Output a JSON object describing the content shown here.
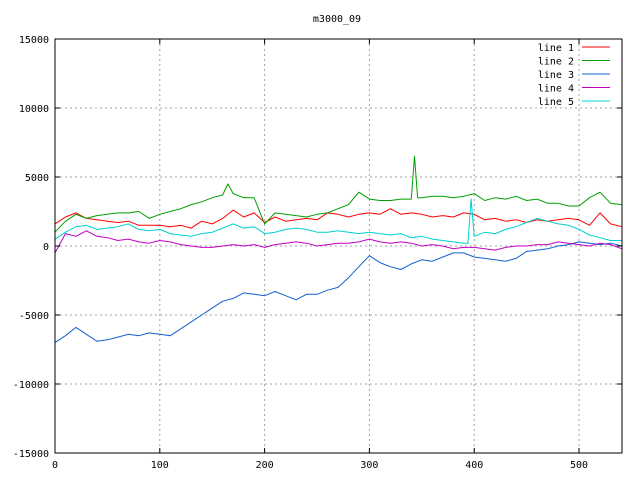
{
  "chart_data": {
    "type": "line",
    "title": "m3000_09",
    "xlabel": "",
    "ylabel": "",
    "xlim": [
      0,
      541
    ],
    "ylim": [
      -15000,
      15000
    ],
    "x_ticks": [
      0,
      100,
      200,
      300,
      400,
      500
    ],
    "y_ticks": [
      -15000,
      -10000,
      -5000,
      0,
      5000,
      10000,
      15000
    ],
    "grid": true,
    "legend_position": "top-right",
    "series": [
      {
        "name": "line 1",
        "color": "#ff0000",
        "x": [
          0,
          10,
          20,
          30,
          40,
          50,
          60,
          70,
          80,
          90,
          100,
          110,
          120,
          130,
          140,
          150,
          160,
          170,
          180,
          190,
          200,
          210,
          220,
          230,
          240,
          250,
          260,
          270,
          280,
          290,
          300,
          310,
          320,
          330,
          340,
          350,
          360,
          370,
          380,
          390,
          400,
          410,
          420,
          430,
          440,
          450,
          460,
          470,
          480,
          490,
          500,
          510,
          520,
          530,
          541
        ],
        "y": [
          1600,
          2100,
          2400,
          2000,
          1900,
          1800,
          1700,
          1800,
          1500,
          1500,
          1500,
          1400,
          1500,
          1300,
          1800,
          1600,
          2000,
          2600,
          2100,
          2400,
          1700,
          2100,
          1800,
          1900,
          2000,
          1900,
          2400,
          2300,
          2100,
          2300,
          2400,
          2300,
          2700,
          2300,
          2400,
          2300,
          2100,
          2200,
          2100,
          2400,
          2300,
          1900,
          2000,
          1800,
          1900,
          1700,
          1900,
          1800,
          1900,
          2000,
          1900,
          1500,
          2400,
          1600,
          1400
        ]
      },
      {
        "name": "line 2",
        "color": "#00a000",
        "x": [
          0,
          10,
          20,
          30,
          40,
          50,
          60,
          70,
          80,
          90,
          100,
          110,
          120,
          130,
          140,
          150,
          160,
          165,
          170,
          180,
          190,
          200,
          210,
          220,
          230,
          240,
          250,
          260,
          270,
          280,
          290,
          300,
          310,
          320,
          330,
          340,
          343,
          346,
          350,
          360,
          370,
          380,
          390,
          400,
          410,
          420,
          430,
          440,
          450,
          460,
          470,
          480,
          490,
          500,
          510,
          520,
          530,
          541
        ],
        "y": [
          1000,
          1800,
          2300,
          2000,
          2200,
          2300,
          2400,
          2400,
          2500,
          2000,
          2300,
          2500,
          2700,
          3000,
          3200,
          3500,
          3700,
          4500,
          3800,
          3500,
          3500,
          1600,
          2400,
          2300,
          2200,
          2100,
          2300,
          2400,
          2700,
          3000,
          3900,
          3400,
          3300,
          3300,
          3400,
          3400,
          6500,
          3500,
          3500,
          3600,
          3600,
          3500,
          3600,
          3800,
          3300,
          3500,
          3400,
          3600,
          3300,
          3400,
          3100,
          3100,
          2900,
          2900,
          3500,
          3900,
          3100,
          3000
        ]
      },
      {
        "name": "line 3",
        "color": "#1060d0",
        "x": [
          0,
          10,
          20,
          30,
          40,
          50,
          60,
          70,
          80,
          90,
          100,
          110,
          120,
          130,
          140,
          150,
          160,
          170,
          180,
          190,
          200,
          210,
          220,
          230,
          240,
          250,
          260,
          270,
          280,
          290,
          300,
          310,
          320,
          330,
          340,
          350,
          360,
          370,
          380,
          390,
          400,
          410,
          420,
          430,
          440,
          450,
          460,
          470,
          480,
          490,
          500,
          510,
          520,
          530,
          541
        ],
        "y": [
          -7000,
          -6500,
          -5900,
          -6400,
          -6900,
          -6800,
          -6600,
          -6400,
          -6500,
          -6300,
          -6400,
          -6500,
          -6000,
          -5500,
          -5000,
          -4500,
          -4000,
          -3800,
          -3400,
          -3500,
          -3600,
          -3300,
          -3600,
          -3900,
          -3500,
          -3500,
          -3200,
          -3000,
          -2300,
          -1500,
          -700,
          -1200,
          -1500,
          -1700,
          -1300,
          -1000,
          -1100,
          -800,
          -500,
          -500,
          -800,
          -900,
          -1000,
          -1100,
          -900,
          -400,
          -300,
          -200,
          0,
          100,
          300,
          200,
          100,
          200,
          0
        ]
      },
      {
        "name": "line 4",
        "color": "#c000c0",
        "x": [
          0,
          10,
          20,
          30,
          40,
          50,
          60,
          70,
          80,
          90,
          100,
          110,
          120,
          130,
          140,
          150,
          160,
          170,
          180,
          190,
          200,
          210,
          220,
          230,
          240,
          250,
          260,
          270,
          280,
          290,
          300,
          310,
          320,
          330,
          340,
          350,
          360,
          370,
          380,
          390,
          400,
          410,
          420,
          430,
          440,
          450,
          460,
          470,
          480,
          490,
          500,
          510,
          520,
          530,
          541
        ],
        "y": [
          -500,
          900,
          700,
          1100,
          700,
          600,
          400,
          500,
          300,
          200,
          400,
          300,
          100,
          0,
          -100,
          -100,
          0,
          100,
          0,
          100,
          -100,
          100,
          200,
          300,
          200,
          0,
          100,
          200,
          200,
          300,
          500,
          300,
          200,
          300,
          200,
          0,
          100,
          0,
          -200,
          -100,
          -100,
          -200,
          -300,
          -100,
          0,
          0,
          100,
          100,
          300,
          200,
          100,
          0,
          200,
          100,
          -200
        ]
      },
      {
        "name": "line 5",
        "color": "#00d0d0",
        "x": [
          0,
          10,
          20,
          30,
          40,
          50,
          60,
          70,
          80,
          90,
          100,
          110,
          120,
          130,
          140,
          150,
          160,
          170,
          180,
          190,
          200,
          210,
          220,
          230,
          240,
          250,
          260,
          270,
          280,
          290,
          300,
          310,
          320,
          330,
          340,
          350,
          360,
          370,
          380,
          390,
          394,
          397,
          400,
          410,
          420,
          430,
          440,
          450,
          460,
          470,
          480,
          490,
          500,
          510,
          520,
          530,
          541
        ],
        "y": [
          500,
          1000,
          1400,
          1500,
          1200,
          1300,
          1400,
          1600,
          1200,
          1100,
          1200,
          900,
          800,
          700,
          900,
          1000,
          1300,
          1600,
          1300,
          1400,
          900,
          1000,
          1200,
          1300,
          1200,
          1000,
          1000,
          1100,
          1000,
          900,
          1000,
          900,
          800,
          900,
          600,
          700,
          500,
          400,
          300,
          200,
          200,
          3400,
          700,
          1000,
          900,
          1200,
          1400,
          1700,
          2000,
          1800,
          1600,
          1500,
          1200,
          800,
          600,
          400,
          400
        ]
      }
    ]
  }
}
